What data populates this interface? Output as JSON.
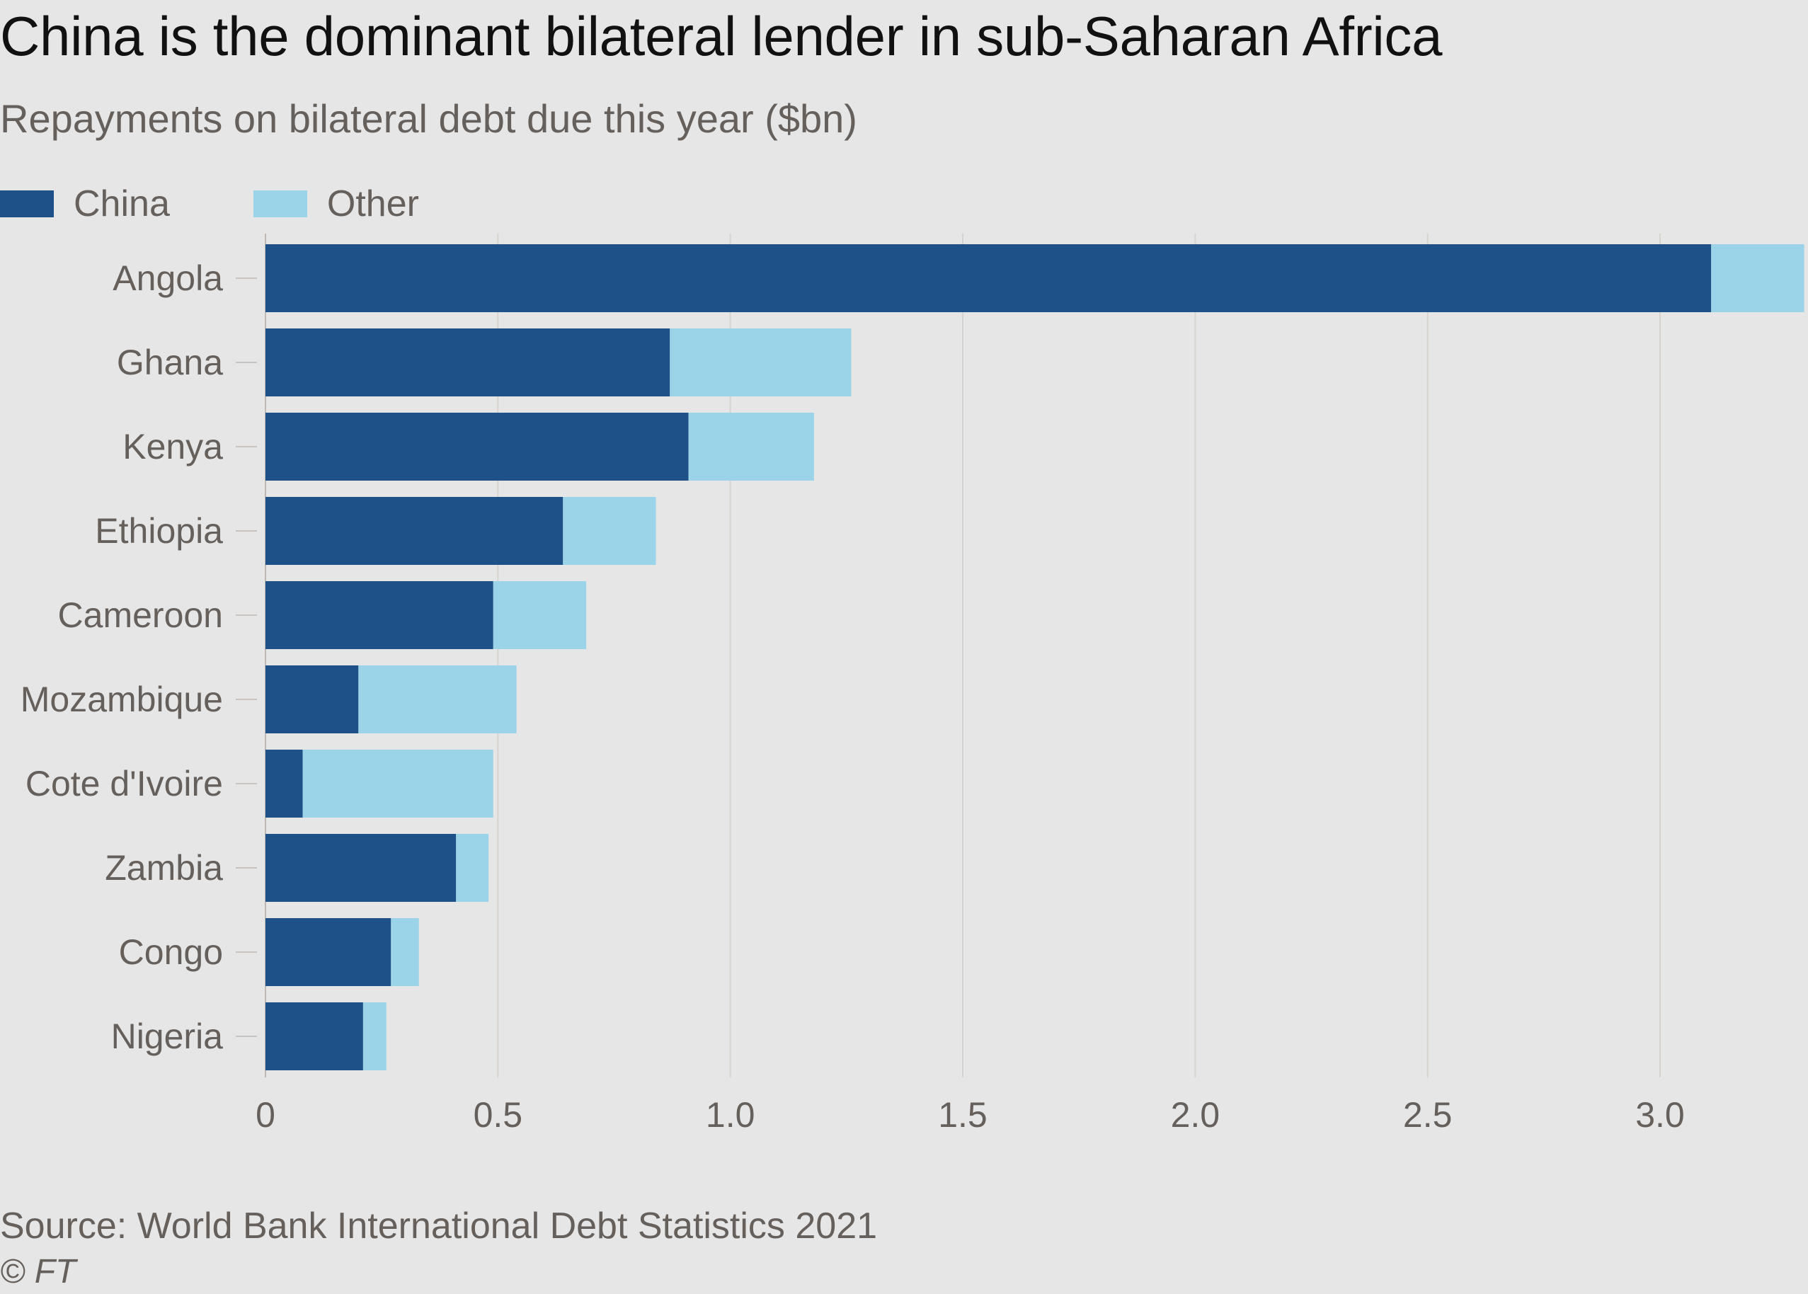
{
  "title": "China is the dominant bilateral lender in sub-Saharan Africa",
  "subtitle": "Repayments on bilateral debt due this year ($bn)",
  "legend": [
    {
      "label": "China",
      "color": "#1f5189"
    },
    {
      "label": "Other",
      "color": "#9bd3e8"
    }
  ],
  "source": "Source: World Bank International Debt Statistics 2021",
  "credit": "© FT",
  "colors": {
    "background": "#e6e6e6",
    "grid": "#d7d3cf",
    "tick_text": "#66605c"
  },
  "chart_data": {
    "type": "bar",
    "orientation": "horizontal",
    "stacked": true,
    "title": "China is the dominant bilateral lender in sub-Saharan Africa",
    "subtitle": "Repayments on bilateral debt due this year ($bn)",
    "xlabel": "",
    "ylabel": "",
    "categories": [
      "Angola",
      "Ghana",
      "Kenya",
      "Ethiopia",
      "Cameroon",
      "Mozambique",
      "Cote d'Ivoire",
      "Zambia",
      "Congo",
      "Nigeria"
    ],
    "series": [
      {
        "name": "China",
        "color": "#1f5189",
        "values": [
          3.11,
          0.87,
          0.91,
          0.64,
          0.49,
          0.2,
          0.08,
          0.41,
          0.27,
          0.21
        ]
      },
      {
        "name": "Other",
        "color": "#9bd3e8",
        "values": [
          0.2,
          0.39,
          0.27,
          0.2,
          0.2,
          0.34,
          0.41,
          0.07,
          0.06,
          0.05
        ]
      }
    ],
    "xlim": [
      0,
      3.3
    ],
    "xticks": [
      0,
      0.5,
      1.0,
      1.5,
      2.0,
      2.5,
      3.0
    ],
    "xtick_labels": [
      "0",
      "0.5",
      "1.0",
      "1.5",
      "2.0",
      "2.5",
      "3.0"
    ],
    "grid": true,
    "legend_position": "top-left"
  }
}
